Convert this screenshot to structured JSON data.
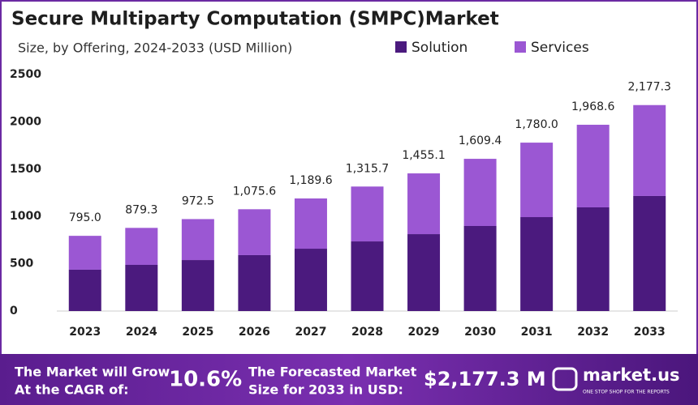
{
  "chart_data": {
    "type": "stacked-bar",
    "title": "Secure Multiparty Computation (SMPC)Market",
    "subtitle": "Size, by Offering, 2024-2033 (USD Million)",
    "categories": [
      "2023",
      "2024",
      "2025",
      "2026",
      "2027",
      "2028",
      "2029",
      "2030",
      "2031",
      "2032",
      "2033"
    ],
    "series": [
      {
        "name": "Solution",
        "color": "#4b1a7e",
        "values": [
          437,
          488,
          539,
          591,
          659,
          736,
          813,
          899,
          993,
          1096,
          1216
        ]
      },
      {
        "name": "Services",
        "color": "#9b57d3",
        "values": [
          358,
          391,
          433,
          485,
          531,
          580,
          642,
          710,
          787,
          873,
          961
        ]
      }
    ],
    "totals": {
      "values": [
        795.0,
        879.3,
        972.5,
        1075.6,
        1189.6,
        1315.7,
        1455.1,
        1609.4,
        1780.0,
        1968.6,
        2177.3
      ],
      "value_labels": [
        "795.0",
        "879.3",
        "972.5",
        "1,075.6",
        "1,189.6",
        "1,315.7",
        "1,455.1",
        "1,609.4",
        "1,780.0",
        "1,968.6",
        "2,177.3"
      ]
    },
    "ylim": [
      0,
      2500
    ],
    "yticks": [
      0,
      500,
      1000,
      1500,
      2000,
      2500
    ],
    "grid": false
  },
  "footer": {
    "cagr_text": [
      "The Market will Grow",
      "At the CAGR of:"
    ],
    "cagr_value": "10.6%",
    "forecast_text": [
      "The Forecasted Market",
      "Size for 2033 in USD:"
    ],
    "forecast_value": "$2,177.3 M",
    "brand": "market.us",
    "tagline": "ONE STOP SHOP FOR THE REPORTS"
  }
}
